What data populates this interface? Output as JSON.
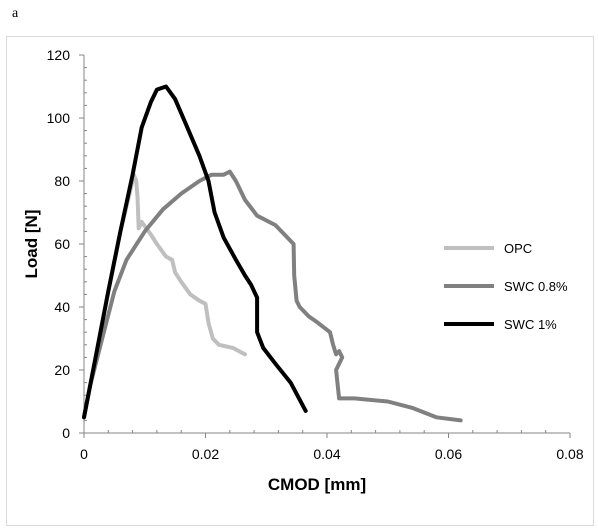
{
  "panel_label": "a",
  "chart_data": {
    "type": "line",
    "title": "",
    "xlabel": "CMOD [mm]",
    "ylabel": "Load  [N]",
    "xlim": [
      0,
      0.08
    ],
    "ylim": [
      0,
      120
    ],
    "xticks": [
      0,
      0.02,
      0.04,
      0.06,
      0.08
    ],
    "xtick_labels": [
      "0",
      "0.02",
      "0.04",
      "0.06",
      "0.08"
    ],
    "yticks": [
      0,
      20,
      40,
      60,
      80,
      100,
      120
    ],
    "ytick_labels": [
      "0",
      "20",
      "40",
      "60",
      "80",
      "100",
      "120"
    ],
    "grid": false,
    "legend_position": "right",
    "series": [
      {
        "name": "OPC",
        "color": "#bfbfbf",
        "x": [
          0,
          0.002,
          0.004,
          0.006,
          0.0075,
          0.0082,
          0.0086,
          0.0088,
          0.009,
          0.0095,
          0.011,
          0.012,
          0.0135,
          0.0145,
          0.015,
          0.016,
          0.0175,
          0.019,
          0.02,
          0.0205,
          0.0212,
          0.0222,
          0.0245,
          0.0265
        ],
        "y": [
          5,
          25,
          45,
          64,
          76,
          82,
          80,
          75,
          65,
          67,
          63,
          60,
          56,
          55,
          51,
          48,
          44,
          42,
          41,
          35,
          30,
          28,
          27,
          25
        ]
      },
      {
        "name": "SWC 0.8%",
        "color": "#808080",
        "x": [
          0,
          0.001,
          0.003,
          0.005,
          0.007,
          0.01,
          0.013,
          0.016,
          0.019,
          0.021,
          0.023,
          0.024,
          0.025,
          0.0265,
          0.0285,
          0.0315,
          0.0345,
          0.0346,
          0.035,
          0.0355,
          0.037,
          0.0385,
          0.0405,
          0.041,
          0.0415,
          0.042,
          0.0425,
          0.0415,
          0.042,
          0.0445,
          0.05,
          0.054,
          0.058,
          0.062
        ],
        "y": [
          5,
          15,
          30,
          45,
          55,
          64,
          71,
          76,
          80,
          82,
          82,
          83,
          80,
          74,
          69,
          66,
          60,
          50,
          42,
          40,
          37,
          35,
          32,
          28,
          25,
          26,
          24,
          20,
          11,
          11,
          10,
          8,
          5,
          4
        ]
      },
      {
        "name": "SWC 1%",
        "color": "#000000",
        "x": [
          0,
          0.002,
          0.004,
          0.006,
          0.008,
          0.0095,
          0.011,
          0.012,
          0.0135,
          0.015,
          0.017,
          0.019,
          0.0205,
          0.0215,
          0.023,
          0.025,
          0.0265,
          0.0275,
          0.0285,
          0.0285,
          0.0295,
          0.0315,
          0.034,
          0.0365
        ],
        "y": [
          5,
          25,
          45,
          64,
          82,
          97,
          105,
          109,
          110,
          106,
          97,
          88,
          80,
          70,
          62,
          55,
          50,
          47,
          43,
          32,
          27,
          22,
          16,
          7
        ]
      }
    ]
  }
}
